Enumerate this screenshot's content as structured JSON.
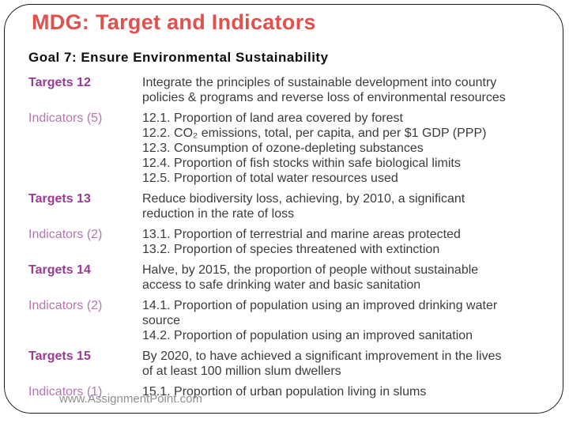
{
  "slide": {
    "title": "MDG: Target and Indicators",
    "heading": "Goal 7: Ensure Environmental Sustainability",
    "watermark": "www.AssignmentPoint.com",
    "colors": {
      "title": "#e0504d",
      "target": "#993b93",
      "indicator": "#b577b1",
      "body": "#3b3b3b",
      "border": "#1a1a1a",
      "watermark": "#8f8f8f"
    },
    "rows": [
      {
        "label": "Targets 12",
        "type": "target",
        "lines": [
          "Integrate the principles of sustainable development into country",
          "policies & programs and reverse loss of environmental resources"
        ]
      },
      {
        "label": "Indicators (5)",
        "type": "indicator",
        "lines": [
          "12.1. Proportion of land area covered by forest",
          "12.2. CO₂ emissions, total, per capita, and per $1 GDP (PPP)",
          "12.3. Consumption of ozone-depleting substances",
          "12.4. Proportion of fish stocks within safe biological limits",
          "12.5. Proportion of total water resources used"
        ]
      },
      {
        "label": "Targets 13",
        "type": "target",
        "lines": [
          "Reduce biodiversity loss, achieving, by 2010, a significant",
          "reduction in the rate of loss"
        ]
      },
      {
        "label": "Indicators (2)",
        "type": "indicator",
        "lines": [
          "13.1. Proportion of terrestrial and marine areas protected",
          "13.2. Proportion of species threatened with extinction"
        ]
      },
      {
        "label": "Targets 14",
        "type": "target",
        "lines": [
          "Halve, by 2015, the proportion of people without sustainable",
          "access to safe drinking water and basic sanitation"
        ]
      },
      {
        "label": "Indicators (2)",
        "type": "indicator",
        "lines": [
          "14.1. Proportion of population using an improved drinking water",
          "source",
          "14.2. Proportion of population using an improved sanitation"
        ]
      },
      {
        "label": "Targets 15",
        "type": "target",
        "lines": [
          "By 2020, to have achieved a significant improvement in the lives",
          "of at least 100 million slum dwellers"
        ]
      },
      {
        "label": "Indicators (1)",
        "type": "indicator",
        "lines": [
          "15.1. Proportion of urban population living in slums"
        ]
      }
    ]
  }
}
